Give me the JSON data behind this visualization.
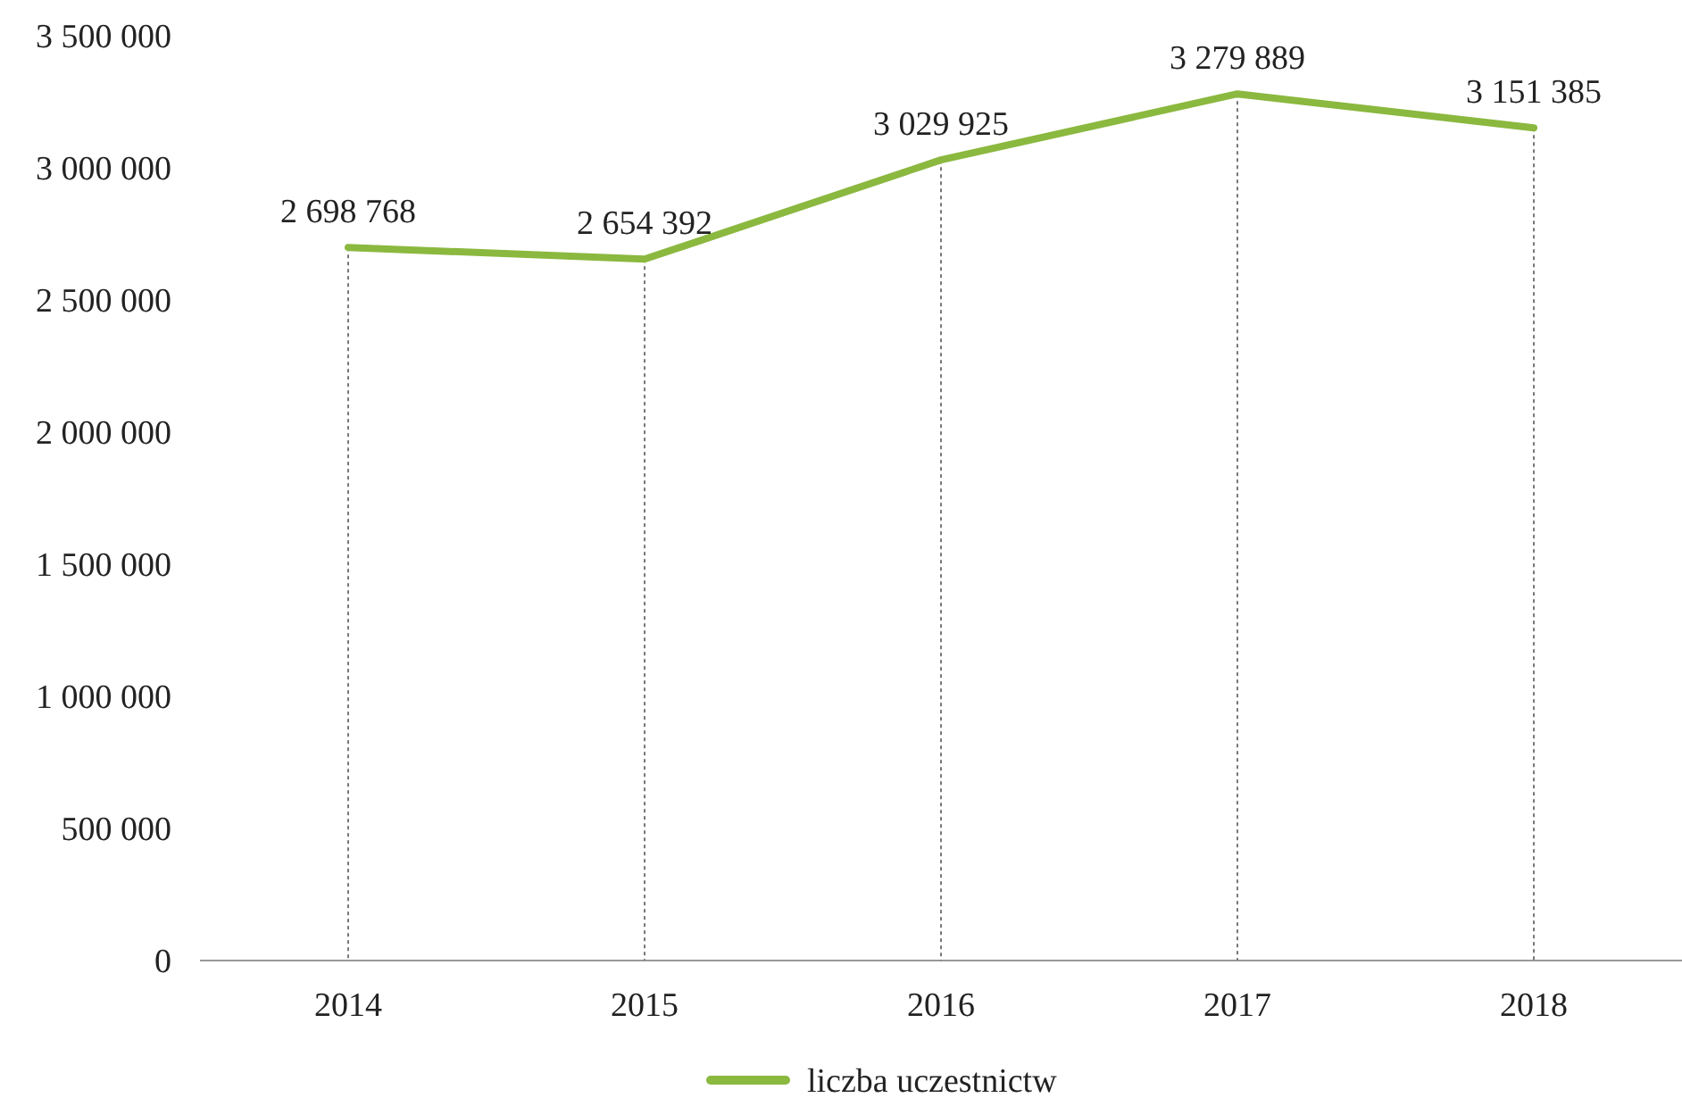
{
  "chart_data": {
    "type": "line",
    "categories": [
      "2014",
      "2015",
      "2016",
      "2017",
      "2018"
    ],
    "series": [
      {
        "name": "liczba uczestnictw",
        "color": "#8bb83f",
        "values": [
          2698768,
          2654392,
          3029925,
          3279889,
          3151385
        ],
        "value_labels": [
          "2 698 768",
          "2 654 392",
          "3 029 925",
          "3 279 889",
          "3 151 385"
        ]
      }
    ],
    "ylim": [
      0,
      3500000
    ],
    "yticks": [
      0,
      {
        "value": 500000,
        "label": "500 000"
      },
      {
        "value": 1000000,
        "label": "1 000 000"
      },
      {
        "value": 1500000,
        "label": "1 500 000"
      },
      {
        "value": 2000000,
        "label": "2 000 000"
      },
      {
        "value": 2500000,
        "label": "2 500 000"
      },
      {
        "value": 3000000,
        "label": "3 000 000"
      },
      {
        "value": 3500000,
        "label": "3 500 000"
      }
    ],
    "grid": "x",
    "legend": "bottom",
    "marker": "none",
    "line_style": "solid"
  }
}
